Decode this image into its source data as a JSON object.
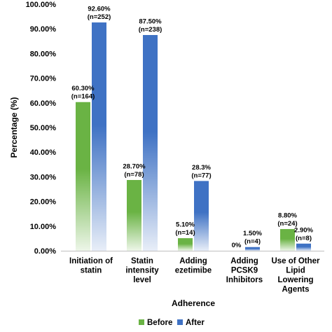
{
  "chart_data": {
    "type": "bar",
    "title": "",
    "xlabel": "Adherence",
    "ylabel": "Percentage (%)",
    "ylim": [
      0,
      100
    ],
    "yticks": [
      "0.00%",
      "10.00%",
      "20.00%",
      "30.00%",
      "40.00%",
      "50.00%",
      "60.00%",
      "70.00%",
      "80.00%",
      "90.00%",
      "100.00%"
    ],
    "grid": false,
    "legend_position": "bottom",
    "categories": [
      [
        "Initiation of",
        "statin"
      ],
      [
        "Statin",
        "intensity",
        "level"
      ],
      [
        "Adding",
        "ezetimibe"
      ],
      [
        "Adding",
        "PCSK9",
        "Inhibitors"
      ],
      [
        "Use of Other",
        "Lipid",
        "Lowering",
        "Agents"
      ]
    ],
    "series": [
      {
        "name": "Before",
        "color": "#6ab344",
        "values": [
          60.3,
          28.7,
          5.1,
          0,
          8.8
        ],
        "labels": [
          [
            "60.30%",
            "(n=164)"
          ],
          [
            "28.70%",
            "(n=78)"
          ],
          [
            "5.10%",
            "(n=14)"
          ],
          [
            "0%"
          ],
          [
            "8.80%",
            "(n=24)"
          ]
        ]
      },
      {
        "name": "After",
        "color": "#3f72c4",
        "values": [
          92.6,
          87.5,
          28.3,
          1.5,
          2.9
        ],
        "labels": [
          [
            "92.60%",
            "(n=252)"
          ],
          [
            "87.50%",
            "(n=238)"
          ],
          [
            "28.3%",
            "(n=77)"
          ],
          [
            "1.50%",
            "(n=4)"
          ],
          [
            "2.90%",
            "(n=8)"
          ]
        ]
      }
    ]
  }
}
